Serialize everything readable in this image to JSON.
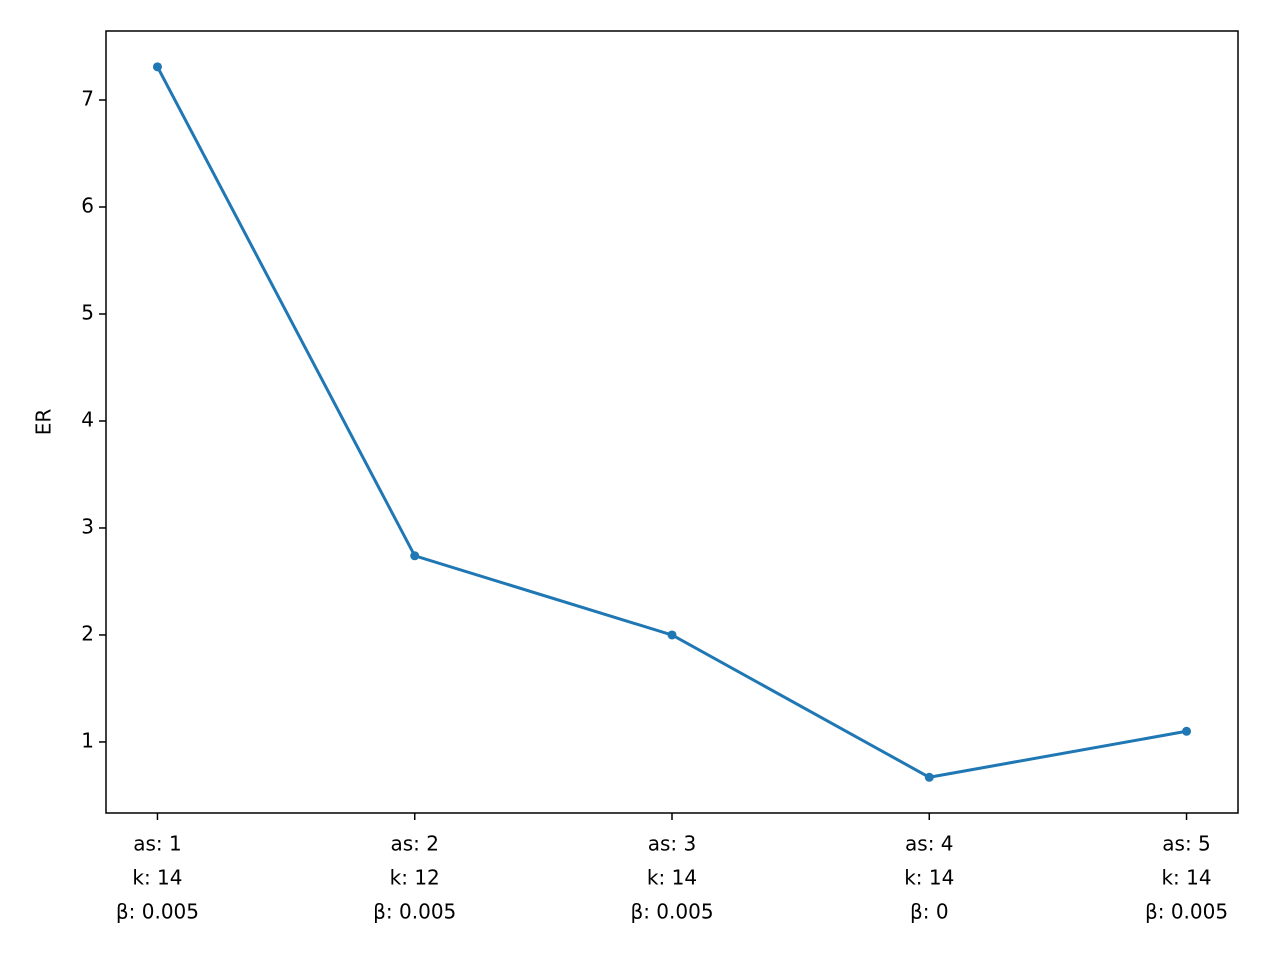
{
  "chart_data": {
    "type": "line",
    "ylabel": "ER",
    "categories": [
      [
        "as: 1",
        "k: 14",
        "β: 0.005"
      ],
      [
        "as: 2",
        "k: 12",
        "β: 0.005"
      ],
      [
        "as: 3",
        "k: 14",
        "β: 0.005"
      ],
      [
        "as: 4",
        "k: 14",
        "β: 0"
      ],
      [
        "as: 5",
        "k: 14",
        "β: 0.005"
      ]
    ],
    "series": [
      {
        "name": "ER",
        "color": "#1f77b4",
        "values": [
          7.31,
          2.74,
          2.0,
          0.67,
          1.1
        ]
      }
    ],
    "ylim": [
      0.336,
      7.645
    ],
    "yticks": [
      1,
      2,
      3,
      4,
      5,
      6,
      7
    ],
    "grid": false
  }
}
